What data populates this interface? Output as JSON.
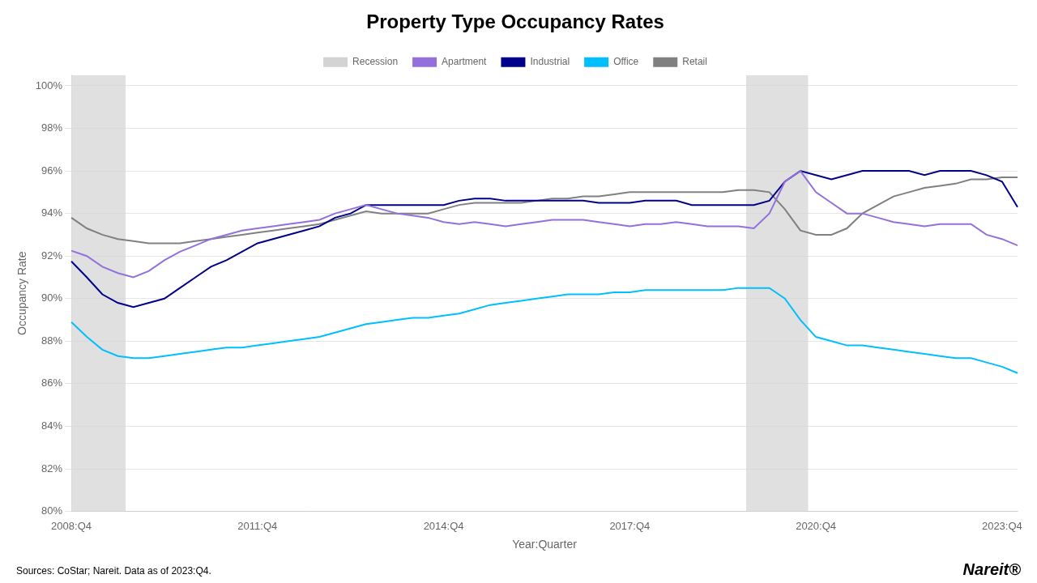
{
  "chart_data": {
    "type": "line",
    "title": "Property Type Occupancy Rates",
    "x_label": "Year:Quarter",
    "y_label": "Occupancy Rate",
    "annotations": [
      "Sources: CoStar; Nareit. Data as of 2023:Q4.",
      "Nareit®"
    ],
    "categories": [
      "2008:Q4",
      null,
      null,
      null,
      null,
      null,
      null,
      null,
      null,
      null,
      null,
      null,
      "2011:Q4",
      null,
      null,
      null,
      null,
      null,
      null,
      null,
      null,
      null,
      null,
      null,
      "2014:Q4",
      null,
      null,
      null,
      null,
      null,
      null,
      null,
      null,
      null,
      null,
      null,
      "2017:Q4",
      null,
      null,
      null,
      null,
      null,
      null,
      null,
      null,
      null,
      null,
      null,
      "2020:Q4",
      null,
      null,
      null,
      null,
      null,
      null,
      null,
      null,
      null,
      null,
      null,
      "2023:Q4",
      null
    ],
    "shading": {
      "name": "Recession",
      "color": "#d3d3d3",
      "periods": [
        {
          "start": 0,
          "end": 4
        },
        {
          "start": 44,
          "end": 48
        }
      ]
    },
    "series": [
      {
        "name": "Apartment",
        "color": "#9370DB",
        "values": [
          0.9225,
          0.92,
          0.915,
          0.912,
          0.91,
          0.913,
          0.918,
          0.922,
          0.925,
          0.928,
          0.93,
          0.932,
          0.933,
          0.934,
          0.935,
          0.936,
          0.937,
          0.94,
          0.942,
          0.944,
          0.942,
          0.94,
          0.939,
          0.938,
          0.936,
          0.935,
          0.936,
          0.935,
          0.934,
          0.935,
          0.936,
          0.937,
          0.937,
          0.937,
          0.936,
          0.935,
          0.934,
          0.935,
          0.935,
          0.936,
          0.935,
          0.934,
          0.934,
          0.934,
          0.933,
          0.94,
          0.955,
          0.96,
          0.95,
          0.945,
          0.94,
          0.94,
          0.938,
          0.936,
          0.935,
          0.934,
          0.935,
          0.935,
          0.935,
          0.93,
          0.928,
          0.925
        ]
      },
      {
        "name": "Industrial",
        "color": "#00008B",
        "values": [
          0.9175,
          0.91,
          0.902,
          0.898,
          0.896,
          0.898,
          0.9,
          0.905,
          0.91,
          0.915,
          0.918,
          0.922,
          0.926,
          0.928,
          0.93,
          0.932,
          0.934,
          0.938,
          0.94,
          0.944,
          0.944,
          0.944,
          0.944,
          0.944,
          0.944,
          0.946,
          0.947,
          0.947,
          0.946,
          0.946,
          0.946,
          0.946,
          0.946,
          0.946,
          0.945,
          0.945,
          0.945,
          0.946,
          0.946,
          0.946,
          0.944,
          0.944,
          0.944,
          0.944,
          0.944,
          0.946,
          0.955,
          0.96,
          0.958,
          0.956,
          0.958,
          0.96,
          0.96,
          0.96,
          0.96,
          0.958,
          0.96,
          0.96,
          0.96,
          0.958,
          0.955,
          0.943
        ]
      },
      {
        "name": "Office",
        "color": "#00BFFF",
        "values": [
          0.889,
          0.882,
          0.876,
          0.873,
          0.872,
          0.872,
          0.873,
          0.874,
          0.875,
          0.876,
          0.877,
          0.877,
          0.878,
          0.879,
          0.88,
          0.881,
          0.882,
          0.884,
          0.886,
          0.888,
          0.889,
          0.89,
          0.891,
          0.891,
          0.892,
          0.893,
          0.895,
          0.897,
          0.898,
          0.899,
          0.9,
          0.901,
          0.902,
          0.902,
          0.902,
          0.903,
          0.903,
          0.904,
          0.904,
          0.904,
          0.904,
          0.904,
          0.904,
          0.905,
          0.905,
          0.905,
          0.9,
          0.89,
          0.882,
          0.88,
          0.878,
          0.878,
          0.877,
          0.876,
          0.875,
          0.874,
          0.873,
          0.872,
          0.872,
          0.87,
          0.868,
          0.865
        ]
      },
      {
        "name": "Retail",
        "color": "#808080",
        "values": [
          0.938,
          0.933,
          0.93,
          0.928,
          0.927,
          0.926,
          0.926,
          0.926,
          0.927,
          0.928,
          0.929,
          0.93,
          0.931,
          0.932,
          0.933,
          0.934,
          0.935,
          0.937,
          0.939,
          0.941,
          0.94,
          0.94,
          0.94,
          0.94,
          0.942,
          0.944,
          0.945,
          0.945,
          0.945,
          0.945,
          0.946,
          0.947,
          0.947,
          0.948,
          0.948,
          0.949,
          0.95,
          0.95,
          0.95,
          0.95,
          0.95,
          0.95,
          0.95,
          0.951,
          0.951,
          0.95,
          0.942,
          0.932,
          0.93,
          0.93,
          0.933,
          0.94,
          0.944,
          0.948,
          0.95,
          0.952,
          0.953,
          0.954,
          0.956,
          0.956,
          0.957,
          0.957
        ]
      }
    ],
    "ylim": [
      0.8,
      1.005
    ],
    "yticks": [
      {
        "value": 0.8,
        "label": "80%"
      },
      {
        "value": 0.82,
        "label": "82%"
      },
      {
        "value": 0.84,
        "label": "84%"
      },
      {
        "value": 0.86,
        "label": "86%"
      },
      {
        "value": 0.88,
        "label": "88%"
      },
      {
        "value": 0.9,
        "label": "90%"
      },
      {
        "value": 0.92,
        "label": "92%"
      },
      {
        "value": 0.94,
        "label": "94%"
      },
      {
        "value": 0.96,
        "label": "96%"
      },
      {
        "value": 0.98,
        "label": "98%"
      },
      {
        "value": 1.0,
        "label": "100%"
      }
    ],
    "grid": "y",
    "legend": "top"
  }
}
